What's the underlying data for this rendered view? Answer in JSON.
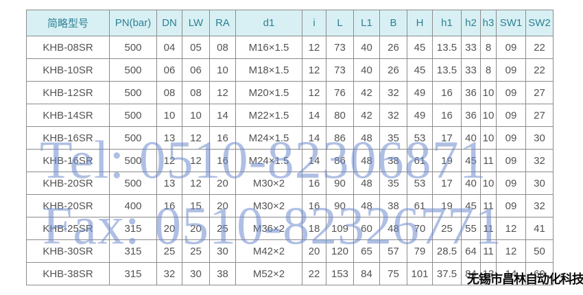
{
  "table": {
    "headers": [
      "简略型号",
      "PN(bar)",
      "DN",
      "LW",
      "RA",
      "d1",
      "i",
      "L",
      "L1",
      "B",
      "H",
      "h1",
      "h2",
      "h3",
      "SW1",
      "SW2"
    ],
    "rows": [
      [
        "KHB-08SR",
        "500",
        "04",
        "05",
        "08",
        "M16×1.5",
        "12",
        "73",
        "40",
        "26",
        "45",
        "13.5",
        "33",
        "8",
        "09",
        "22"
      ],
      [
        "KHB-10SR",
        "500",
        "06",
        "06",
        "10",
        "M18×1.5",
        "12",
        "73",
        "40",
        "26",
        "45",
        "13.5",
        "33",
        "8",
        "09",
        "22"
      ],
      [
        "KHB-12SR",
        "500",
        "08",
        "08",
        "12",
        "M20×1.5",
        "12",
        "76",
        "42",
        "32",
        "49",
        "16",
        "36",
        "10",
        "09",
        "27"
      ],
      [
        "KHB-14SR",
        "500",
        "10",
        "10",
        "14",
        "M22×1.5",
        "14",
        "80",
        "42",
        "32",
        "49",
        "16",
        "36",
        "10",
        "09",
        "27"
      ],
      [
        "KHB-16SR",
        "500",
        "13",
        "12",
        "16",
        "M24×1.5",
        "14",
        "86",
        "48",
        "35",
        "53",
        "17",
        "40",
        "10",
        "09",
        "30"
      ],
      [
        "KHB-16SR",
        "500",
        "12",
        "12",
        "16",
        "M24×1.5",
        "14",
        "86",
        "48",
        "38",
        "61",
        "19",
        "45",
        "11",
        "09",
        "32"
      ],
      [
        "KHB-20SR",
        "500",
        "13",
        "12",
        "20",
        "M30×2",
        "16",
        "90",
        "48",
        "35",
        "53",
        "17",
        "40",
        "10",
        "09",
        "30"
      ],
      [
        "KHB-20SR",
        "400",
        "16",
        "15",
        "20",
        "M30×2",
        "16",
        "90",
        "48",
        "38",
        "61",
        "19",
        "45",
        "11",
        "09",
        "32"
      ],
      [
        "KHB-25SR",
        "315",
        "20",
        "20",
        "25",
        "M36×2",
        "18",
        "109",
        "60",
        "48",
        "70",
        "25",
        "55",
        "11",
        "12",
        "41"
      ],
      [
        "KHB-30SR",
        "315",
        "25",
        "25",
        "30",
        "M42×2",
        "20",
        "120",
        "65",
        "57",
        "79",
        "28.5",
        "64",
        "11",
        "12",
        "50"
      ],
      [
        "KHB-38SR",
        "315",
        "32",
        "30",
        "38",
        "M52×2",
        "22",
        "153",
        "84",
        "75",
        "101",
        "37.5",
        "84",
        "13",
        "14",
        "60"
      ]
    ]
  },
  "watermarks": {
    "tel": "Tel: 0510-82306871",
    "fax": "Fax: 0510-82326771",
    "company": "无锡市昌林自动化科技"
  },
  "colors": {
    "header_bg": "#d8f0f4",
    "header_text": "#2d8093",
    "body_text": "#525252",
    "border": "#8a8a8a",
    "watermark_blue": "#6e8ace",
    "company_text": "#0a0a0a"
  }
}
